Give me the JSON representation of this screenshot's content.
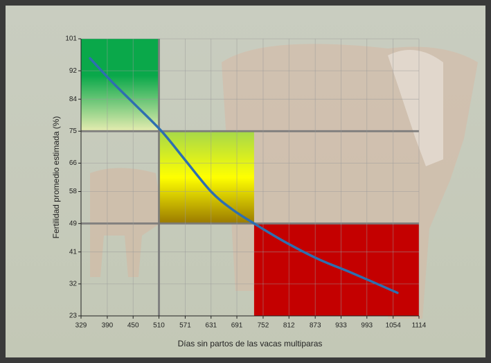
{
  "chart_data": {
    "type": "line",
    "x_label": "Días sin partos de las vacas multiparas",
    "y_label": "Fertilidad promedio estimada (%)",
    "x": [
      350,
      400,
      450,
      516,
      570,
      631,
      680,
      731,
      800,
      880,
      960,
      1064
    ],
    "series": [
      {
        "name": "Fertilidad",
        "color": "#2e6fb0",
        "values": [
          95.5,
          89,
          83,
          75,
          67,
          58,
          53,
          49,
          44,
          39,
          35,
          29.5
        ]
      }
    ],
    "zones": [
      {
        "x": [
          329,
          510
        ],
        "y": [
          75,
          101
        ],
        "colors": [
          "#0aa84a",
          "#e6ecb0"
        ]
      },
      {
        "x": [
          510,
          731
        ],
        "y": [
          49,
          75
        ],
        "colors": [
          "#a6d84a",
          "#ffff00",
          "#9a7a00"
        ]
      },
      {
        "x": [
          731,
          1114
        ],
        "y": [
          23,
          49
        ],
        "colors": [
          "#c40000",
          "#c40000"
        ]
      }
    ],
    "xlim": [
      329,
      1114
    ],
    "xticks": [
      329,
      390,
      450,
      510,
      571,
      631,
      691,
      752,
      812,
      873,
      933,
      993,
      1054,
      1114
    ],
    "ylim": [
      23,
      101
    ],
    "yticks": [
      23,
      32,
      41,
      49,
      58,
      66,
      75,
      84,
      92,
      101
    ],
    "grid": true
  }
}
